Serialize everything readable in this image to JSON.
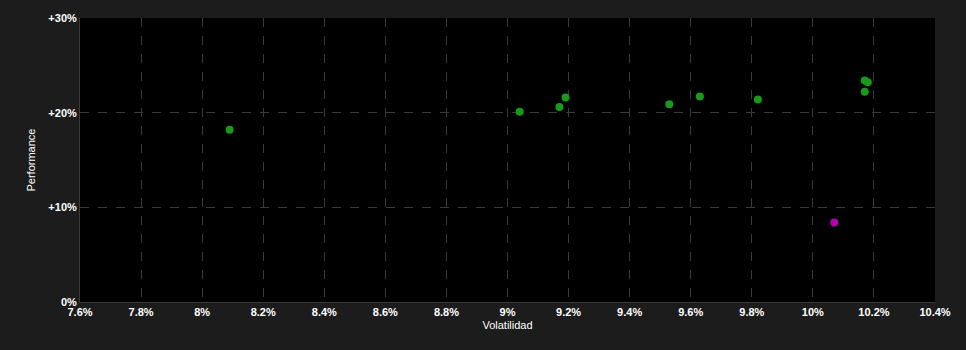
{
  "chart_data": {
    "type": "scatter",
    "x_label": "Volatilidad",
    "y_label": "Performance",
    "x": [
      8.09,
      9.04,
      9.17,
      9.19,
      9.53,
      9.63,
      9.82,
      10.17,
      10.17,
      10.18,
      10.07
    ],
    "values": [
      18.2,
      20.1,
      20.6,
      21.6,
      20.9,
      21.7,
      21.4,
      22.2,
      23.4,
      23.2,
      8.4
    ],
    "colors": [
      "#1a9a1a",
      "#1a9a1a",
      "#1a9a1a",
      "#1a9a1a",
      "#1a9a1a",
      "#1a9a1a",
      "#1a9a1a",
      "#1a9a1a",
      "#1a9a1a",
      "#1a9a1a",
      "#b000b0"
    ],
    "marker": "circle",
    "xlim": [
      7.6,
      10.4
    ],
    "xticks": [
      {
        "value": 7.6,
        "label": "7.6%"
      },
      {
        "value": 7.8,
        "label": "7.8%"
      },
      {
        "value": 8.0,
        "label": "8%"
      },
      {
        "value": 8.2,
        "label": "8.2%"
      },
      {
        "value": 8.4,
        "label": "8.4%"
      },
      {
        "value": 8.6,
        "label": "8.6%"
      },
      {
        "value": 8.8,
        "label": "8.8%"
      },
      {
        "value": 9.0,
        "label": "9%"
      },
      {
        "value": 9.2,
        "label": "9.2%"
      },
      {
        "value": 9.4,
        "label": "9.4%"
      },
      {
        "value": 9.6,
        "label": "9.6%"
      },
      {
        "value": 9.8,
        "label": "9.8%"
      },
      {
        "value": 10.0,
        "label": "10%"
      },
      {
        "value": 10.2,
        "label": "10.2%"
      },
      {
        "value": 10.4,
        "label": "10.4%"
      }
    ],
    "ylim": [
      0,
      30
    ],
    "yticks": [
      {
        "value": 0,
        "label": "0%"
      },
      {
        "value": 10,
        "label": "+10%"
      },
      {
        "value": 20,
        "label": "+20%"
      },
      {
        "value": 30,
        "label": "+30%"
      }
    ],
    "grid": true
  }
}
